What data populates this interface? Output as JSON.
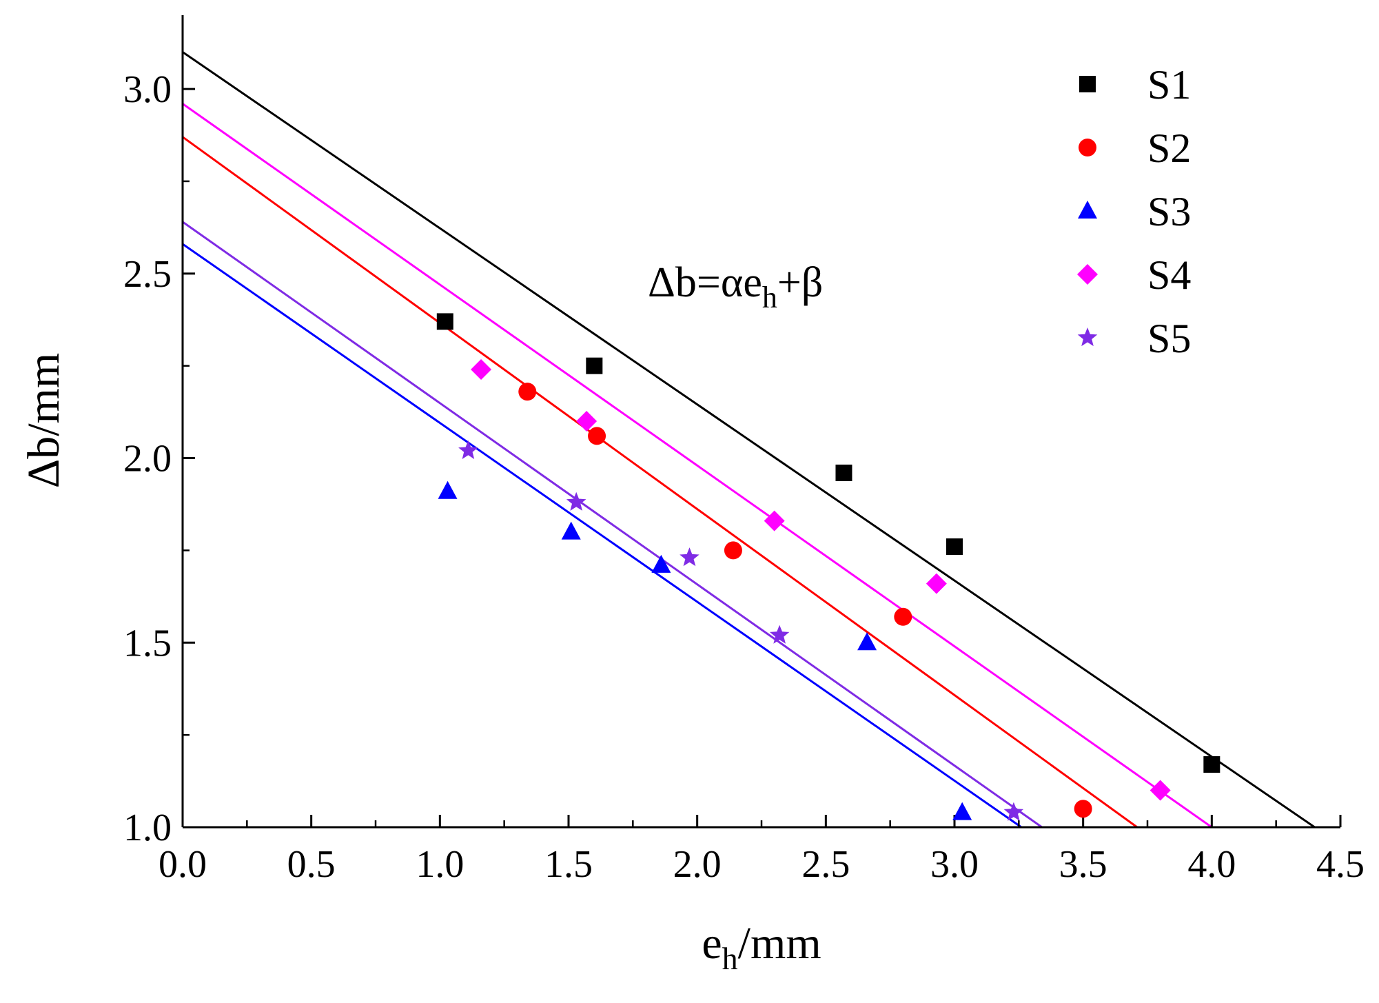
{
  "chart_data": {
    "type": "scatter",
    "title": "",
    "xlabel": {
      "main": "e",
      "sub": "h",
      "suffix": "/mm"
    },
    "ylabel": "Δb/mm",
    "xlim": [
      0,
      4.5
    ],
    "ylim": [
      1.0,
      3.2
    ],
    "x_ticks": [
      "0.0",
      "0.5",
      "1.0",
      "1.5",
      "2.0",
      "2.5",
      "3.0",
      "3.5",
      "4.0",
      "4.5"
    ],
    "y_ticks": [
      "1.0",
      "1.5",
      "2.0",
      "2.5",
      "3.0"
    ],
    "grid": false,
    "legend_position": "top-right",
    "annotation": {
      "prefix": "Δb=αe",
      "sub": "h",
      "suffix": "+β"
    },
    "series": [
      {
        "name": "S1",
        "marker": "square",
        "color": "#000000",
        "x": [
          1.02,
          1.6,
          2.57,
          3.0,
          4.0
        ],
        "y": [
          2.37,
          2.25,
          1.96,
          1.76,
          1.17
        ],
        "fit": {
          "x0": 0.0,
          "y0": 3.1,
          "x1": 4.4,
          "y1": 1.0
        }
      },
      {
        "name": "S2",
        "marker": "circle",
        "color": "#ff0000",
        "x": [
          1.34,
          1.61,
          2.14,
          2.8,
          3.5
        ],
        "y": [
          2.18,
          2.06,
          1.75,
          1.57,
          1.05
        ],
        "fit": {
          "x0": 0.0,
          "y0": 2.87,
          "x1": 3.71,
          "y1": 1.0
        }
      },
      {
        "name": "S3",
        "marker": "triangle",
        "color": "#0000ff",
        "x": [
          1.03,
          1.51,
          1.86,
          2.66,
          3.03
        ],
        "y": [
          1.91,
          1.8,
          1.71,
          1.5,
          1.04
        ],
        "fit": {
          "x0": 0.0,
          "y0": 2.58,
          "x1": 3.26,
          "y1": 1.0
        }
      },
      {
        "name": "S4",
        "marker": "diamond",
        "color": "#ff00ff",
        "x": [
          1.16,
          1.57,
          2.3,
          2.93,
          3.8
        ],
        "y": [
          2.24,
          2.1,
          1.83,
          1.66,
          1.1
        ],
        "fit": {
          "x0": 0.0,
          "y0": 2.96,
          "x1": 4.0,
          "y1": 1.0
        }
      },
      {
        "name": "S5",
        "marker": "star",
        "color": "#7f2be5",
        "x": [
          1.11,
          1.53,
          1.97,
          2.32,
          3.23
        ],
        "y": [
          2.02,
          1.88,
          1.73,
          1.52,
          1.04
        ],
        "fit": {
          "x0": 0.0,
          "y0": 2.64,
          "x1": 3.34,
          "y1": 1.0
        }
      }
    ]
  }
}
